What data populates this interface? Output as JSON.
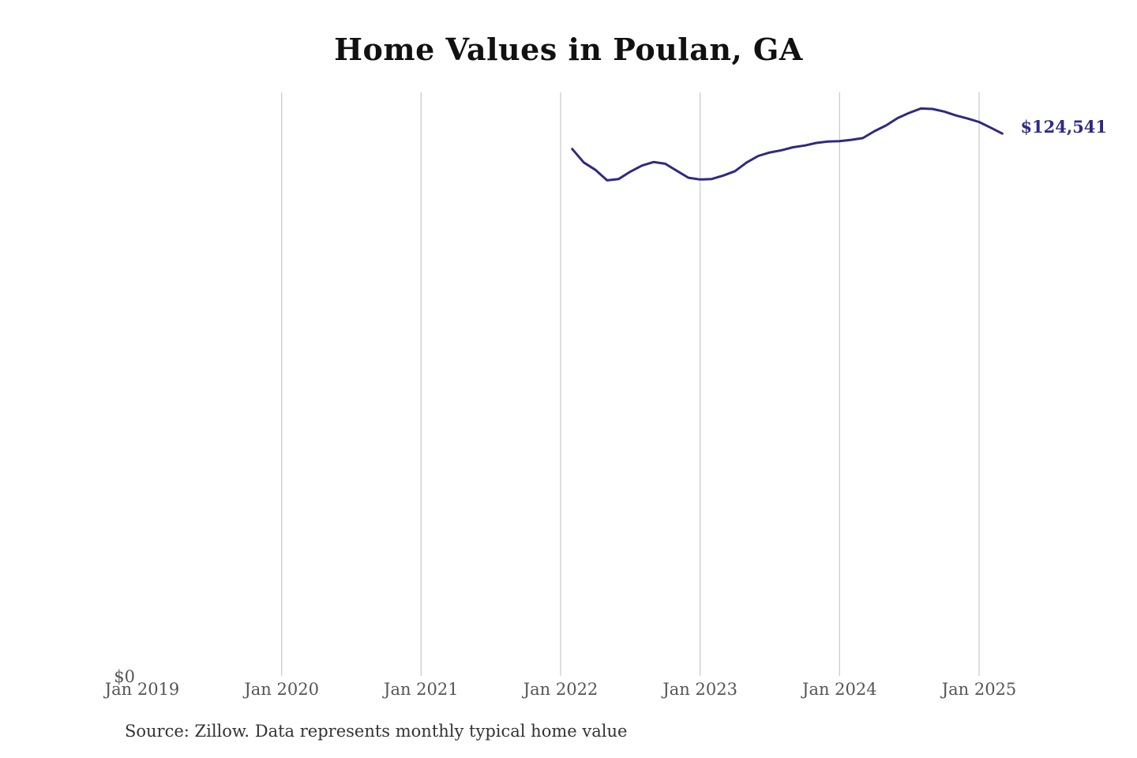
{
  "title": "Home Values in Poulan, GA",
  "source": "Source: Zillow. Data represents monthly typical home value",
  "colors": {
    "line": "#2e2a82",
    "grid": "#c8c8c8",
    "text": "#555555"
  },
  "chart_data": {
    "type": "line",
    "title": "Home Values in Poulan, GA",
    "xlabel": "",
    "ylabel": "",
    "x_tick_labels": [
      "Jan 2019",
      "Jan 2020",
      "Jan 2021",
      "Jan 2022",
      "Jan 2023",
      "Jan 2024",
      "Jan 2025"
    ],
    "y_tick_labels": [
      "$0"
    ],
    "ylim": [
      0,
      134000
    ],
    "xlim": [
      "2019-01",
      "2025-04"
    ],
    "grid": "vertical",
    "end_label": "$124,541",
    "series": [
      {
        "x": [
          "2022-02",
          "2022-03",
          "2022-04",
          "2022-05",
          "2022-06",
          "2022-07",
          "2022-08",
          "2022-09",
          "2022-10",
          "2022-11",
          "2022-12",
          "2023-01",
          "2023-02",
          "2023-03",
          "2023-04",
          "2023-05",
          "2023-06",
          "2023-07",
          "2023-08",
          "2023-09",
          "2023-10",
          "2023-11",
          "2023-12",
          "2024-01",
          "2024-02",
          "2024-03",
          "2024-04",
          "2024-05",
          "2024-06",
          "2024-07",
          "2024-08",
          "2024-09",
          "2024-10",
          "2024-11",
          "2024-12",
          "2025-01",
          "2025-02",
          "2025-03"
        ],
        "values": [
          121000,
          117900,
          116200,
          113800,
          114100,
          115800,
          117200,
          118000,
          117600,
          116000,
          114400,
          114000,
          114100,
          114900,
          115900,
          117900,
          119400,
          120200,
          120700,
          121400,
          121800,
          122400,
          122700,
          122800,
          123100,
          123500,
          125100,
          126400,
          128100,
          129300,
          130300,
          130200,
          129600,
          128700,
          128000,
          127200,
          125900,
          124541
        ]
      }
    ]
  }
}
